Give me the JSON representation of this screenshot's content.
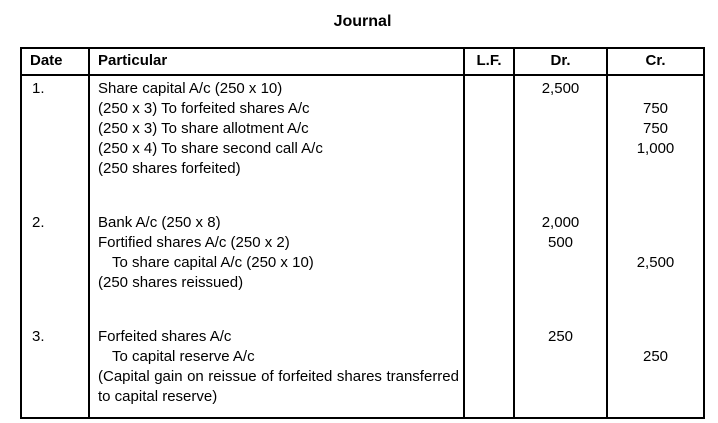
{
  "title": "Journal",
  "colors": {
    "text": "#000000",
    "border": "#000000",
    "background": "#ffffff"
  },
  "table": {
    "headers": {
      "date": "Date",
      "particular": "Particular",
      "lf": "L.F.",
      "dr": "Dr.",
      "cr": "Cr."
    },
    "entries": [
      {
        "date": "1.",
        "lines": [
          {
            "text": "Share capital A/c (250 x 10)",
            "dr": "2,500",
            "cr": ""
          },
          {
            "text": "(250 x 3) To forfeited shares A/c",
            "dr": "",
            "cr": "750"
          },
          {
            "text": "(250 x 3) To share allotment A/c",
            "dr": "",
            "cr": "750"
          },
          {
            "text": "(250 x 4) To share second call A/c",
            "dr": "",
            "cr": "1,000"
          },
          {
            "text": "(250 shares forfeited)",
            "dr": "",
            "cr": ""
          }
        ]
      },
      {
        "date": "2.",
        "lines": [
          {
            "text": "Bank A/c (250 x 8)",
            "dr": "2,000",
            "cr": ""
          },
          {
            "text": "Fortified shares A/c (250 x 2)",
            "dr": "500",
            "cr": ""
          },
          {
            "text": "To share capital A/c (250 x 10)",
            "dr": "",
            "cr": "2,500",
            "indent": true
          },
          {
            "text": "(250 shares reissued)",
            "dr": "",
            "cr": ""
          }
        ]
      },
      {
        "date": "3.",
        "lines": [
          {
            "text": "Forfeited shares A/c",
            "dr": "250",
            "cr": ""
          },
          {
            "text": "To capital reserve A/c",
            "dr": "",
            "cr": "250",
            "indent": true
          },
          {
            "text": "(Capital gain on reissue of forfeited shares transferred to capital reserve)",
            "dr": "",
            "cr": "",
            "justify": true
          }
        ]
      }
    ]
  }
}
